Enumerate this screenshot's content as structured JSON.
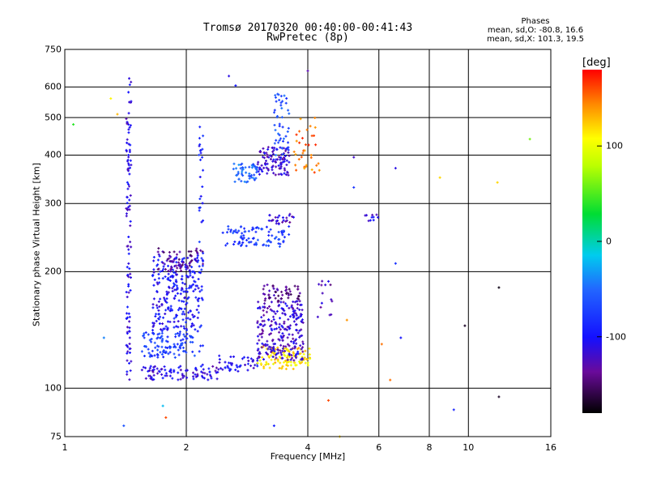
{
  "header": {
    "title_line1": "Tromsø 20170320 00:40:00-00:41:43",
    "title_line2": "RwPretec (8p)",
    "stats_title": "Phases",
    "stats_o": "mean, sd,O: -80.8, 16.6",
    "stats_x": "mean, sd,X: 101.3, 19.5"
  },
  "colorbar": {
    "title": "[deg]",
    "ticks": [
      {
        "value": 100,
        "label": "100"
      },
      {
        "value": 0,
        "label": "0"
      },
      {
        "value": -100,
        "label": "-100"
      }
    ],
    "range": [
      -180,
      180
    ]
  },
  "chart_data": {
    "type": "scatter",
    "title": "Tromsø 20170320 00:40:00-00:41:43",
    "subtitle": "RwPretec (8p)",
    "xlabel": "Frequency [MHz]",
    "ylabel": "Stationary phase Virtual Height [km]",
    "xscale": "log",
    "yscale": "log",
    "xlim": [
      1,
      16
    ],
    "ylim": [
      75,
      750
    ],
    "x_ticks": [
      {
        "value": 1,
        "label": "1"
      },
      {
        "value": 2,
        "label": "2"
      },
      {
        "value": 4,
        "label": "4"
      },
      {
        "value": 6,
        "label": "6"
      },
      {
        "value": 8,
        "label": "8"
      },
      {
        "value": 10,
        "label": "10"
      },
      {
        "value": 16,
        "label": "16"
      }
    ],
    "y_ticks": [
      {
        "value": 75,
        "label": "75"
      },
      {
        "value": 100,
        "label": "100"
      },
      {
        "value": 200,
        "label": "200"
      },
      {
        "value": 300,
        "label": "300"
      },
      {
        "value": 400,
        "label": "400"
      },
      {
        "value": 500,
        "label": "500"
      },
      {
        "value": 600,
        "label": "600"
      },
      {
        "value": 750,
        "label": "750"
      }
    ],
    "grid": true,
    "color_by": "phase [deg]",
    "color_range": [
      -180,
      180
    ],
    "clusters": [
      {
        "x": [
          1.55,
          2.4
        ],
        "y": [
          105,
          114
        ],
        "phase": -112,
        "count": 90
      },
      {
        "x": [
          2.4,
          3.0
        ],
        "y": [
          110,
          122
        ],
        "phase": -105,
        "count": 45
      },
      {
        "x": [
          3.0,
          4.05
        ],
        "y": [
          112,
          128
        ],
        "phase": 115,
        "count": 110
      },
      {
        "x": [
          3.0,
          3.9
        ],
        "y": [
          118,
          168
        ],
        "phase": -118,
        "count": 240
      },
      {
        "x": [
          3.1,
          3.85
        ],
        "y": [
          168,
          185
        ],
        "phase": -140,
        "count": 50
      },
      {
        "x": [
          1.55,
          2.1
        ],
        "y": [
          120,
          140
        ],
        "phase": -75,
        "count": 110
      },
      {
        "x": [
          1.65,
          2.15
        ],
        "y": [
          140,
          220
        ],
        "phase": -100,
        "count": 240
      },
      {
        "x": [
          1.7,
          2.2
        ],
        "y": [
          200,
          230
        ],
        "phase": -138,
        "count": 60
      },
      {
        "x": [
          1.42,
          1.46
        ],
        "y": [
          105,
          640
        ],
        "phase": -110,
        "count": 110
      },
      {
        "x": [
          2.15,
          2.2
        ],
        "y": [
          108,
          480
        ],
        "phase": -90,
        "count": 45
      },
      {
        "x": [
          2.45,
          3.6
        ],
        "y": [
          232,
          262
        ],
        "phase": -75,
        "count": 90
      },
      {
        "x": [
          3.2,
          3.7
        ],
        "y": [
          265,
          282
        ],
        "phase": -120,
        "count": 25
      },
      {
        "x": [
          2.6,
          3.0
        ],
        "y": [
          340,
          380
        ],
        "phase": -52,
        "count": 50
      },
      {
        "x": [
          3.0,
          3.6
        ],
        "y": [
          355,
          420
        ],
        "phase": -115,
        "count": 100
      },
      {
        "x": [
          3.3,
          3.6
        ],
        "y": [
          400,
          580
        ],
        "phase": -65,
        "count": 45
      },
      {
        "x": [
          3.7,
          4.3
        ],
        "y": [
          360,
          500
        ],
        "phase": 150,
        "count": 35
      },
      {
        "x": [
          4.2,
          4.6
        ],
        "y": [
          150,
          190
        ],
        "phase": -125,
        "count": 14
      },
      {
        "x": [
          5.5,
          6.0
        ],
        "y": [
          270,
          285
        ],
        "phase": -110,
        "count": 10
      }
    ],
    "sparse_points": [
      {
        "x": 1.05,
        "y": 480,
        "phase": 40
      },
      {
        "x": 1.25,
        "y": 135,
        "phase": -40
      },
      {
        "x": 1.3,
        "y": 560,
        "phase": 110
      },
      {
        "x": 1.35,
        "y": 510,
        "phase": 130
      },
      {
        "x": 1.4,
        "y": 80,
        "phase": -60
      },
      {
        "x": 1.75,
        "y": 90,
        "phase": -20
      },
      {
        "x": 1.78,
        "y": 84,
        "phase": 160
      },
      {
        "x": 2.55,
        "y": 640,
        "phase": -110
      },
      {
        "x": 2.65,
        "y": 605,
        "phase": -95
      },
      {
        "x": 3.3,
        "y": 80,
        "phase": -90
      },
      {
        "x": 4.0,
        "y": 660,
        "phase": -130
      },
      {
        "x": 4.5,
        "y": 93,
        "phase": 160
      },
      {
        "x": 4.8,
        "y": 75,
        "phase": 120
      },
      {
        "x": 5.0,
        "y": 150,
        "phase": 140
      },
      {
        "x": 5.2,
        "y": 395,
        "phase": -120
      },
      {
        "x": 5.2,
        "y": 330,
        "phase": -80
      },
      {
        "x": 6.1,
        "y": 130,
        "phase": 150
      },
      {
        "x": 6.4,
        "y": 105,
        "phase": 150
      },
      {
        "x": 6.6,
        "y": 370,
        "phase": -110
      },
      {
        "x": 6.6,
        "y": 210,
        "phase": -80
      },
      {
        "x": 6.8,
        "y": 135,
        "phase": -100
      },
      {
        "x": 8.5,
        "y": 350,
        "phase": 120
      },
      {
        "x": 9.2,
        "y": 88,
        "phase": -90
      },
      {
        "x": 9.8,
        "y": 145,
        "phase": -170
      },
      {
        "x": 11.8,
        "y": 340,
        "phase": 120
      },
      {
        "x": 11.9,
        "y": 95,
        "phase": -170
      },
      {
        "x": 11.9,
        "y": 182,
        "phase": -175
      },
      {
        "x": 14.2,
        "y": 440,
        "phase": 60
      }
    ]
  }
}
